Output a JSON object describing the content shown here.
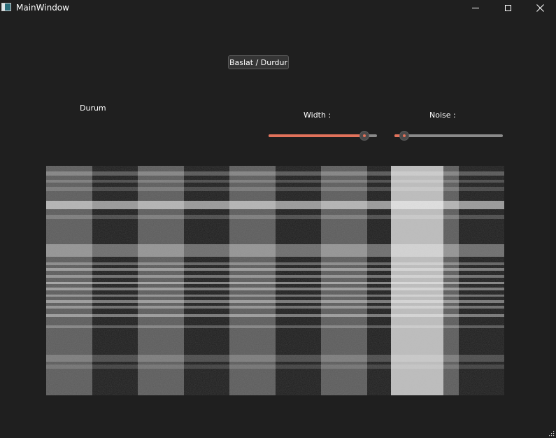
{
  "window": {
    "title": "MainWindow",
    "icon": "app-window-icon",
    "controls": [
      "minimize-icon",
      "maximize-icon",
      "close-icon"
    ]
  },
  "controls": {
    "start_stop_label": "Baslat / Durdur",
    "status_label": "Durum",
    "width_label": "Width :",
    "noise_label": "Noise :"
  },
  "sliders": {
    "width": {
      "value_fraction": 0.92
    },
    "noise": {
      "value_fraction": 0.05
    }
  },
  "colors": {
    "background": "#1f1f1f",
    "accent": "#e2725b",
    "slider_groove": "#8a8a8a",
    "button_bg": "#353535"
  },
  "image_view": {
    "description_icon": "striped-signal-image",
    "stripe_pattern": [
      {
        "bright": true
      },
      {
        "bright": false
      },
      {
        "bright": true
      },
      {
        "bright": false
      },
      {
        "bright": true
      },
      {
        "bright": false
      },
      {
        "bright": true
      },
      {
        "bright": false
      },
      {
        "bright": "highlight"
      },
      {
        "bright": true
      },
      {
        "bright": false
      }
    ]
  }
}
